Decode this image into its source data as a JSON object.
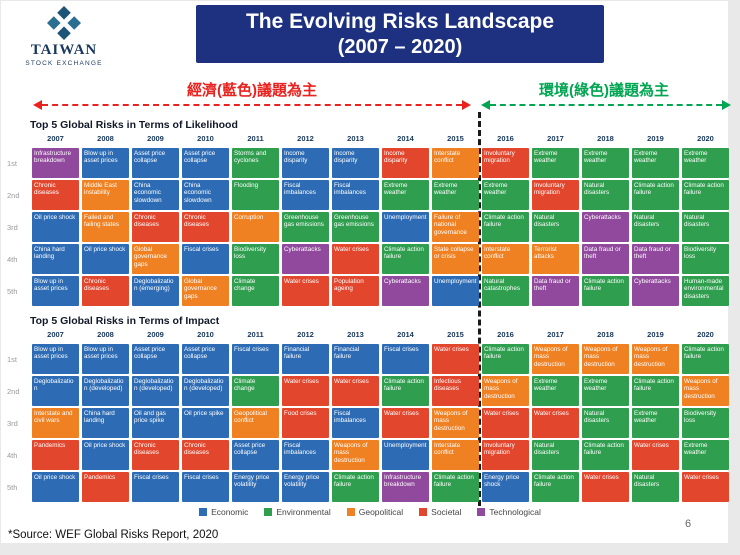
{
  "header": {
    "logo": {
      "line1": "TAIWAN",
      "line2": "STOCK EXCHANGE"
    },
    "title_line1": "The Evolving Risks Landscape",
    "title_line2": "(2007 – 2020)"
  },
  "annotations": {
    "left_theme": "經濟(藍色)議題為主",
    "right_theme": "環境(綠色)議題為主"
  },
  "colors": {
    "banner_bg": "#1e3180",
    "banner_text": "#ffffff",
    "left_theme": "#e8231f",
    "right_theme": "#00a551",
    "divider": "#1a1a1a",
    "year_text": "#17375e"
  },
  "category_colors": {
    "E": "#2d6cb5",
    "V": "#2f9e4e",
    "G": "#ef8122",
    "S": "#e2472e",
    "T": "#90499c"
  },
  "legend": [
    {
      "label": "Economic",
      "key": "E"
    },
    {
      "label": "Environmental",
      "key": "V"
    },
    {
      "label": "Geopolitical",
      "key": "G"
    },
    {
      "label": "Societal",
      "key": "S"
    },
    {
      "label": "Technological",
      "key": "T"
    }
  ],
  "chart_data": [
    {
      "type": "table",
      "name": "likelihood",
      "title": "Top 5 Global Risks in Terms of Likelihood",
      "years": [
        "2007",
        "2008",
        "2009",
        "2010",
        "2011",
        "2012",
        "2013",
        "2014",
        "2015",
        "2016",
        "2017",
        "2018",
        "2019",
        "2020"
      ],
      "rank_labels": [
        "1st",
        "2nd",
        "3rd",
        "4th",
        "5th"
      ],
      "rows": [
        [
          [
            "Infrastructure breakdown",
            "T"
          ],
          [
            "Blow up in asset prices",
            "E"
          ],
          [
            "Asset price collapse",
            "E"
          ],
          [
            "Asset price collapse",
            "E"
          ],
          [
            "Storms and cyclones",
            "V"
          ],
          [
            "Income disparity",
            "E"
          ],
          [
            "Income disparity",
            "E"
          ],
          [
            "Income disparity",
            "S"
          ],
          [
            "Interstate conflict",
            "G"
          ],
          [
            "Involuntary migration",
            "S"
          ],
          [
            "Extreme weather",
            "V"
          ],
          [
            "Extreme weather",
            "V"
          ],
          [
            "Extreme weather",
            "V"
          ],
          [
            "Extreme weather",
            "V"
          ]
        ],
        [
          [
            "Chronic diseases",
            "S"
          ],
          [
            "Middle East instability",
            "G"
          ],
          [
            "China economic slowdown",
            "E"
          ],
          [
            "China economic slowdown",
            "E"
          ],
          [
            "Flooding",
            "V"
          ],
          [
            "Fiscal imbalances",
            "E"
          ],
          [
            "Fiscal imbalances",
            "E"
          ],
          [
            "Extreme weather",
            "V"
          ],
          [
            "Extreme weather",
            "V"
          ],
          [
            "Extreme weather",
            "V"
          ],
          [
            "Involuntary migration",
            "S"
          ],
          [
            "Natural disasters",
            "V"
          ],
          [
            "Climate action failure",
            "V"
          ],
          [
            "Climate action failure",
            "V"
          ]
        ],
        [
          [
            "Oil price shock",
            "E"
          ],
          [
            "Failed and failing states",
            "G"
          ],
          [
            "Chronic diseases",
            "S"
          ],
          [
            "Chronic diseases",
            "S"
          ],
          [
            "Corruption",
            "G"
          ],
          [
            "Greenhouse gas emissions",
            "V"
          ],
          [
            "Greenhouse gas emissions",
            "V"
          ],
          [
            "Unemployment",
            "E"
          ],
          [
            "Failure of national governance",
            "G"
          ],
          [
            "Climate action failure",
            "V"
          ],
          [
            "Natural disasters",
            "V"
          ],
          [
            "Cyberattacks",
            "T"
          ],
          [
            "Natural disasters",
            "V"
          ],
          [
            "Natural disasters",
            "V"
          ]
        ],
        [
          [
            "China hard landing",
            "E"
          ],
          [
            "Oil price shock",
            "E"
          ],
          [
            "Global governance gaps",
            "G"
          ],
          [
            "Fiscal crises",
            "E"
          ],
          [
            "Biodiversity loss",
            "V"
          ],
          [
            "Cyberattacks",
            "T"
          ],
          [
            "Water crises",
            "S"
          ],
          [
            "Climate action failure",
            "V"
          ],
          [
            "State collapse or crisis",
            "G"
          ],
          [
            "Interstate conflict",
            "G"
          ],
          [
            "Terrorist attacks",
            "G"
          ],
          [
            "Data fraud or theft",
            "T"
          ],
          [
            "Data fraud or theft",
            "T"
          ],
          [
            "Biodiversity loss",
            "V"
          ]
        ],
        [
          [
            "Blow up in asset prices",
            "E"
          ],
          [
            "Chronic diseases",
            "S"
          ],
          [
            "Deglobalization (emerging)",
            "E"
          ],
          [
            "Global governance gaps",
            "G"
          ],
          [
            "Climate change",
            "V"
          ],
          [
            "Water crises",
            "S"
          ],
          [
            "Population ageing",
            "S"
          ],
          [
            "Cyberattacks",
            "T"
          ],
          [
            "Unemployment",
            "E"
          ],
          [
            "Natural catastrophes",
            "V"
          ],
          [
            "Data fraud or theft",
            "T"
          ],
          [
            "Climate action failure",
            "V"
          ],
          [
            "Cyberattacks",
            "T"
          ],
          [
            "Human-made environmental disasters",
            "V"
          ]
        ]
      ]
    },
    {
      "type": "table",
      "name": "impact",
      "title": "Top 5 Global Risks in Terms of Impact",
      "years": [
        "2007",
        "2008",
        "2009",
        "2010",
        "2011",
        "2012",
        "2013",
        "2014",
        "2015",
        "2016",
        "2017",
        "2018",
        "2019",
        "2020"
      ],
      "rank_labels": [
        "1st",
        "2nd",
        "3rd",
        "4th",
        "5th"
      ],
      "rows": [
        [
          [
            "Blow up in asset prices",
            "E"
          ],
          [
            "Blow up in asset prices",
            "E"
          ],
          [
            "Asset price collapse",
            "E"
          ],
          [
            "Asset price collapse",
            "E"
          ],
          [
            "Fiscal crises",
            "E"
          ],
          [
            "Financial failure",
            "E"
          ],
          [
            "Financial failure",
            "E"
          ],
          [
            "Fiscal crises",
            "E"
          ],
          [
            "Water crises",
            "S"
          ],
          [
            "Climate action failure",
            "V"
          ],
          [
            "Weapons of mass destruction",
            "G"
          ],
          [
            "Weapons of mass destruction",
            "G"
          ],
          [
            "Weapons of mass destruction",
            "G"
          ],
          [
            "Climate action failure",
            "V"
          ]
        ],
        [
          [
            "Deglobalization",
            "E"
          ],
          [
            "Deglobalization (developed)",
            "E"
          ],
          [
            "Deglobalization (developed)",
            "E"
          ],
          [
            "Deglobalization (developed)",
            "E"
          ],
          [
            "Climate change",
            "V"
          ],
          [
            "Water crises",
            "S"
          ],
          [
            "Water crises",
            "S"
          ],
          [
            "Climate action failure",
            "V"
          ],
          [
            "Infectious diseases",
            "S"
          ],
          [
            "Weapons of mass destruction",
            "G"
          ],
          [
            "Extreme weather",
            "V"
          ],
          [
            "Extreme weather",
            "V"
          ],
          [
            "Climate action failure",
            "V"
          ],
          [
            "Weapons of mass destruction",
            "G"
          ]
        ],
        [
          [
            "Interstate and civil wars",
            "G"
          ],
          [
            "China hard landing",
            "E"
          ],
          [
            "Oil and gas price spike",
            "E"
          ],
          [
            "Oil price spike",
            "E"
          ],
          [
            "Geopolitical conflict",
            "G"
          ],
          [
            "Food crises",
            "S"
          ],
          [
            "Fiscal imbalances",
            "E"
          ],
          [
            "Water crises",
            "S"
          ],
          [
            "Weapons of mass destruction",
            "G"
          ],
          [
            "Water crises",
            "S"
          ],
          [
            "Water crises",
            "S"
          ],
          [
            "Natural disasters",
            "V"
          ],
          [
            "Extreme weather",
            "V"
          ],
          [
            "Biodiversity loss",
            "V"
          ]
        ],
        [
          [
            "Pandemics",
            "S"
          ],
          [
            "Oil price shock",
            "E"
          ],
          [
            "Chronic diseases",
            "S"
          ],
          [
            "Chronic diseases",
            "S"
          ],
          [
            "Asset price collapse",
            "E"
          ],
          [
            "Fiscal imbalances",
            "E"
          ],
          [
            "Weapons of mass destruction",
            "G"
          ],
          [
            "Unemployment",
            "E"
          ],
          [
            "Interstate conflict",
            "G"
          ],
          [
            "Involuntary migration",
            "S"
          ],
          [
            "Natural disasters",
            "V"
          ],
          [
            "Climate action failure",
            "V"
          ],
          [
            "Water crises",
            "S"
          ],
          [
            "Extreme weather",
            "V"
          ]
        ],
        [
          [
            "Oil price shock",
            "E"
          ],
          [
            "Pandemics",
            "S"
          ],
          [
            "Fiscal crises",
            "E"
          ],
          [
            "Fiscal crises",
            "E"
          ],
          [
            "Energy price volatility",
            "E"
          ],
          [
            "Energy price volatility",
            "E"
          ],
          [
            "Climate action failure",
            "V"
          ],
          [
            "Infrastructure breakdown",
            "T"
          ],
          [
            "Climate action failure",
            "V"
          ],
          [
            "Energy price shock",
            "E"
          ],
          [
            "Climate action failure",
            "V"
          ],
          [
            "Water crises",
            "S"
          ],
          [
            "Natural disasters",
            "V"
          ],
          [
            "Water crises",
            "S"
          ]
        ]
      ]
    }
  ],
  "footer": {
    "source": "*Source: WEF Global Risks Report, 2020",
    "page": "6"
  }
}
